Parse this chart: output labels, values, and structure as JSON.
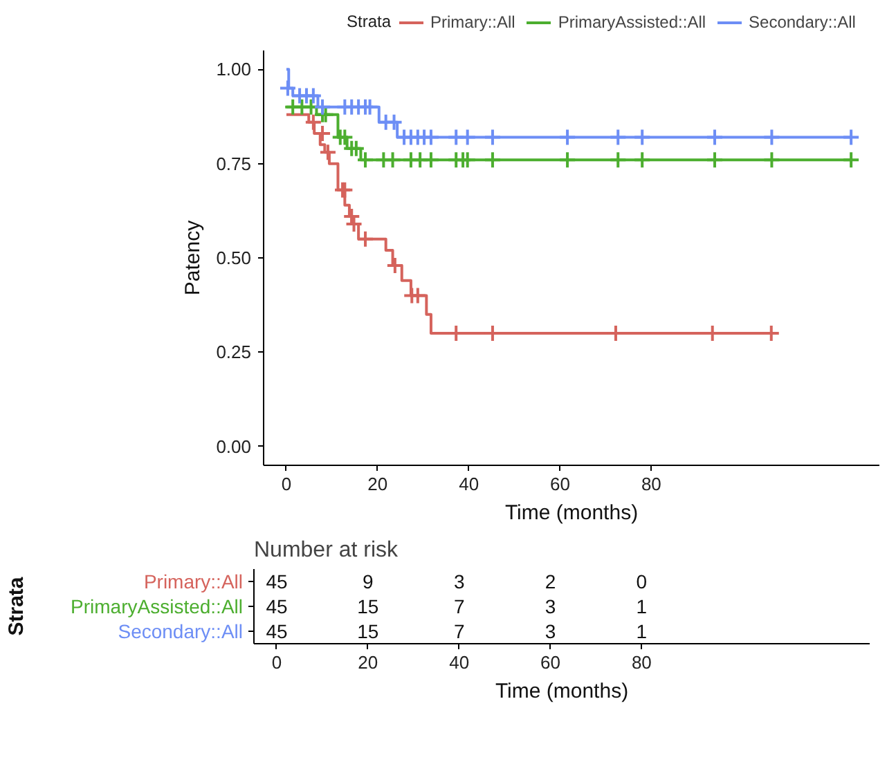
{
  "chart_data": [
    {
      "type": "step",
      "xlabel": "Time (months)",
      "ylabel": "Patency",
      "legend_title": "Strata",
      "legend": "top",
      "xlim": [
        -5,
        130
      ],
      "xticks": [
        0,
        20,
        40,
        60,
        80
      ],
      "ylim": [
        -0.05,
        1.05
      ],
      "yticks": [
        {
          "value": 0,
          "label": "0.00"
        },
        {
          "value": 0.25,
          "label": "0.25"
        },
        {
          "value": 0.5,
          "label": "0.50"
        },
        {
          "value": 0.75,
          "label": "0.75"
        },
        {
          "value": 1,
          "label": "1.00"
        }
      ],
      "grid": false,
      "series": [
        {
          "name": "Primary::All",
          "color": "#d5635c",
          "x": [
            0,
            4.9,
            6.1,
            7.4,
            8.4,
            9.4,
            11.3,
            12.8,
            13.8,
            14.3,
            15.8,
            21.8,
            23.3,
            25.3,
            27.3,
            30.7,
            31.7,
            106.3
          ],
          "values": [
            0.88,
            0.86,
            0.83,
            0.8,
            0.78,
            0.75,
            0.68,
            0.64,
            0.61,
            0.59,
            0.55,
            0.52,
            0.48,
            0.44,
            0.4,
            0.35,
            0.3,
            0.3
          ]
        },
        {
          "name": "PrimaryAssisted::All",
          "color": "#4cae2f",
          "x": [
            0,
            6.6,
            11.3,
            13.3,
            16.3,
            123.8
          ],
          "values": [
            0.9,
            0.88,
            0.82,
            0.79,
            0.76,
            0.76
          ]
        },
        {
          "name": "Secondary::All",
          "color": "#6d8ef5",
          "x": [
            0,
            0.5,
            1.4,
            6.9,
            20.3,
            24.3,
            123.8
          ],
          "values": [
            1.0,
            0.95,
            0.93,
            0.9,
            0.86,
            0.82,
            0.82
          ]
        },
        {
          "type": "scatter",
          "marker": "cross",
          "color": "#d5635c",
          "x": [
            5.9,
            7.9,
            9.1,
            12.3,
            12.8,
            14.3,
            14.8,
            17.3,
            23.8,
            27.5,
            28.8,
            37.2,
            45.2,
            72.2,
            93.4,
            106.3
          ],
          "values": [
            0.86,
            0.83,
            0.78,
            0.68,
            0.68,
            0.61,
            0.59,
            0.55,
            0.48,
            0.4,
            0.4,
            0.3,
            0.3,
            0.3,
            0.3,
            0.3
          ]
        },
        {
          "type": "scatter",
          "marker": "cross",
          "color": "#4cae2f",
          "x": [
            1.4,
            3.4,
            5.4,
            7.9,
            8.6,
            11.8,
            12.8,
            14.3,
            15.3,
            17.3,
            21.3,
            23.3,
            27.3,
            29.3,
            31.7,
            37.2,
            38.7,
            39.7,
            45.2,
            61.6,
            72.7,
            78.0,
            93.9,
            106.4,
            123.8
          ],
          "values": [
            0.9,
            0.9,
            0.9,
            0.88,
            0.88,
            0.82,
            0.82,
            0.79,
            0.79,
            0.76,
            0.76,
            0.76,
            0.76,
            0.76,
            0.76,
            0.76,
            0.76,
            0.76,
            0.76,
            0.76,
            0.76,
            0.76,
            0.76,
            0.76,
            0.76
          ]
        },
        {
          "type": "scatter",
          "marker": "cross",
          "color": "#6d8ef5",
          "x": [
            0.3,
            2.9,
            4.4,
            5.9,
            7.9,
            12.8,
            14.3,
            15.8,
            17.3,
            18.3,
            21.8,
            23.6,
            25.8,
            27.3,
            28.8,
            30.2,
            31.7,
            37.2,
            39.7,
            45.2,
            61.6,
            72.7,
            78.0,
            93.9,
            106.4,
            123.8
          ],
          "values": [
            0.95,
            0.93,
            0.93,
            0.93,
            0.9,
            0.9,
            0.9,
            0.9,
            0.9,
            0.9,
            0.86,
            0.86,
            0.82,
            0.82,
            0.82,
            0.82,
            0.82,
            0.82,
            0.82,
            0.82,
            0.82,
            0.82,
            0.82,
            0.82,
            0.82,
            0.82
          ]
        }
      ]
    },
    {
      "type": "heatmap",
      "title": "Number at risk",
      "xlabel": "Time (months)",
      "ylabel": "Strata",
      "categories": [
        "0",
        "20",
        "40",
        "60",
        "80"
      ],
      "y_categories": [
        "Primary::All",
        "PrimaryAssisted::All",
        "Secondary::All"
      ],
      "colors": [
        "#d5635c",
        "#4cae2f",
        "#6d8ef5"
      ],
      "data_labels": true,
      "cells": [
        [
          45,
          9,
          3,
          2,
          0
        ],
        [
          45,
          15,
          7,
          3,
          1
        ],
        [
          45,
          15,
          7,
          3,
          1
        ]
      ]
    }
  ]
}
